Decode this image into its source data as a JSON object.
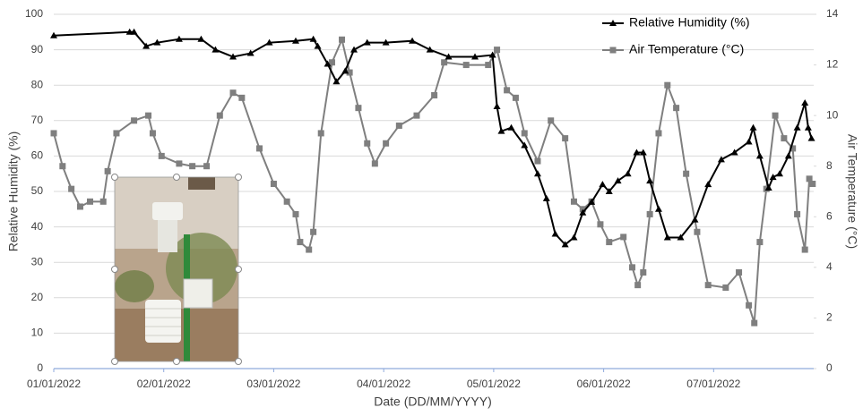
{
  "chart_data": {
    "type": "line",
    "xlabel": "Date (DD/MM/YYYY)",
    "ylabel": "Relative Humidity (%)",
    "y2label": "Air Temperature (°C)",
    "xlim": [
      0,
      6.91
    ],
    "xticks": [
      {
        "value": 0,
        "label": "01/01/2022"
      },
      {
        "value": 1,
        "label": "02/01/2022"
      },
      {
        "value": 2,
        "label": "03/01/2022"
      },
      {
        "value": 3,
        "label": "04/01/2022"
      },
      {
        "value": 4,
        "label": "05/01/2022"
      },
      {
        "value": 5,
        "label": "06/01/2022"
      },
      {
        "value": 6,
        "label": "07/01/2022"
      }
    ],
    "ylim": [
      0,
      100
    ],
    "yticks": [
      0,
      10,
      20,
      30,
      40,
      50,
      60,
      70,
      80,
      90,
      100
    ],
    "y2lim": [
      0,
      14
    ],
    "y2ticks": [
      0,
      2,
      4,
      6,
      8,
      10,
      12,
      14
    ],
    "grid": true,
    "legend": "top-right",
    "series": [
      {
        "name": "Relative Humidity (%)",
        "color": "#000000",
        "marker": "triangle",
        "x": [
          0,
          0.69,
          0.73,
          0.84,
          0.94,
          1.14,
          1.34,
          1.47,
          1.63,
          1.79,
          1.96,
          2.2,
          2.36,
          2.4,
          2.49,
          2.57,
          2.65,
          2.73,
          2.85,
          3.02,
          3.26,
          3.42,
          3.59,
          3.83,
          3.99,
          4.03,
          4.07,
          4.16,
          4.28,
          4.4,
          4.48,
          4.56,
          4.65,
          4.73,
          4.81,
          4.89,
          4.99,
          5.05,
          5.13,
          5.22,
          5.3,
          5.36,
          5.42,
          5.5,
          5.58,
          5.7,
          5.83,
          5.95,
          6.07,
          6.19,
          6.32,
          6.36,
          6.42,
          6.5,
          6.54,
          6.6,
          6.68,
          6.76,
          6.83,
          6.86,
          6.89
        ],
        "values": [
          94,
          95,
          95,
          91,
          92,
          93,
          93,
          90,
          88,
          89,
          92,
          92.5,
          93,
          91,
          86,
          81,
          84,
          90,
          92,
          92,
          92.5,
          90,
          88,
          88,
          88.5,
          74,
          67,
          68,
          63,
          55,
          48,
          38,
          35,
          37,
          44,
          47,
          52,
          50,
          53,
          55,
          61,
          61,
          53,
          45,
          37,
          37,
          42,
          52,
          59,
          61,
          64,
          68,
          60,
          51,
          54,
          55,
          60,
          68,
          75,
          68,
          65
        ]
      },
      {
        "name": "Air Temperature (°C)",
        "color": "#7f7f7f",
        "marker": "square",
        "axis": "y2",
        "x": [
          0,
          0.08,
          0.16,
          0.24,
          0.33,
          0.45,
          0.49,
          0.57,
          0.73,
          0.86,
          0.9,
          0.98,
          1.14,
          1.26,
          1.39,
          1.51,
          1.63,
          1.71,
          1.87,
          2.0,
          2.12,
          2.2,
          2.24,
          2.32,
          2.36,
          2.43,
          2.53,
          2.62,
          2.69,
          2.77,
          2.85,
          2.92,
          3.02,
          3.14,
          3.3,
          3.46,
          3.55,
          3.75,
          3.95,
          4.03,
          4.12,
          4.2,
          4.28,
          4.4,
          4.52,
          4.65,
          4.73,
          4.81,
          4.89,
          4.97,
          5.05,
          5.18,
          5.26,
          5.31,
          5.36,
          5.42,
          5.5,
          5.58,
          5.66,
          5.75,
          5.85,
          5.95,
          6.11,
          6.23,
          6.32,
          6.37,
          6.42,
          6.48,
          6.56,
          6.64,
          6.72,
          6.76,
          6.83,
          6.87,
          6.9
        ],
        "values": [
          9.3,
          8.0,
          7.1,
          6.4,
          6.6,
          6.6,
          7.8,
          9.3,
          9.8,
          10.0,
          9.3,
          8.4,
          8.1,
          8.0,
          8.0,
          10.0,
          10.9,
          10.7,
          8.7,
          7.3,
          6.6,
          6.1,
          5.0,
          4.7,
          5.4,
          9.3,
          12.1,
          13.0,
          11.7,
          10.3,
          8.9,
          8.1,
          8.9,
          9.6,
          10.0,
          10.8,
          12.1,
          12.0,
          12.0,
          12.6,
          11.0,
          10.7,
          9.3,
          8.2,
          9.8,
          9.1,
          6.6,
          6.3,
          6.6,
          5.7,
          5.0,
          5.2,
          4.0,
          3.3,
          3.8,
          6.1,
          9.3,
          11.2,
          10.3,
          7.7,
          5.4,
          3.3,
          3.2,
          3.8,
          2.5,
          1.8,
          5.0,
          7.1,
          10.0,
          9.1,
          8.7,
          6.1,
          4.7,
          7.5,
          7.3
        ]
      }
    ]
  }
}
